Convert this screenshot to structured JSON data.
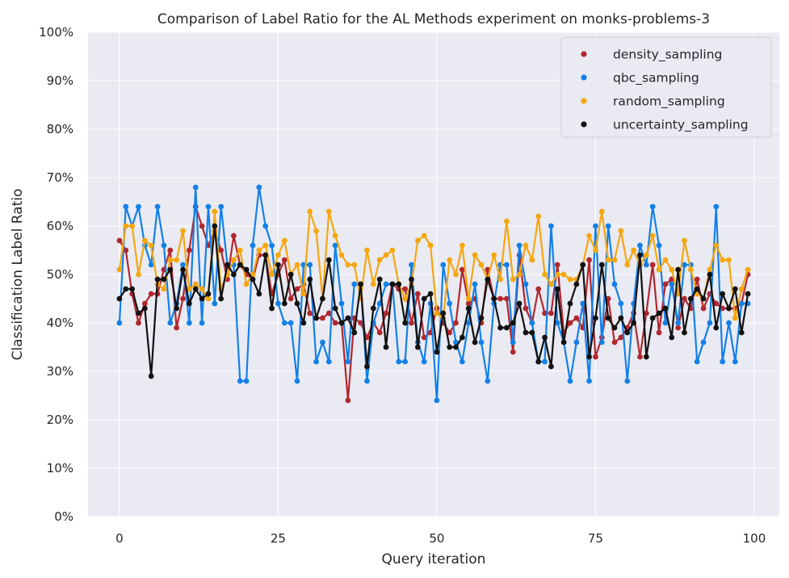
{
  "chart_data": {
    "type": "line",
    "title": "Comparison of Label Ratio for the AL Methods experiment on monks-problems-3",
    "xlabel": "Query iteration",
    "ylabel": "Classification Label Ratio",
    "xlim": [
      -4.95,
      103.95
    ],
    "ylim": [
      0,
      1
    ],
    "xticks": [
      0,
      25,
      50,
      75,
      100
    ],
    "xtick_labels": [
      "0",
      "25",
      "50",
      "75",
      "100"
    ],
    "yticks": [
      0,
      0.1,
      0.2,
      0.3,
      0.4,
      0.5,
      0.6,
      0.7,
      0.8,
      0.9,
      1.0
    ],
    "ytick_labels": [
      "0%",
      "10%",
      "20%",
      "30%",
      "40%",
      "50%",
      "60%",
      "70%",
      "80%",
      "90%",
      "100%"
    ],
    "grid": true,
    "legend_position": "top-right",
    "background": "#eaeaf2",
    "x": [
      0,
      1,
      2,
      3,
      4,
      5,
      6,
      7,
      8,
      9,
      10,
      11,
      12,
      13,
      14,
      15,
      16,
      17,
      18,
      19,
      20,
      21,
      22,
      23,
      24,
      25,
      26,
      27,
      28,
      29,
      30,
      31,
      32,
      33,
      34,
      35,
      36,
      37,
      38,
      39,
      40,
      41,
      42,
      43,
      44,
      45,
      46,
      47,
      48,
      49,
      50,
      51,
      52,
      53,
      54,
      55,
      56,
      57,
      58,
      59,
      60,
      61,
      62,
      63,
      64,
      65,
      66,
      67,
      68,
      69,
      70,
      71,
      72,
      73,
      74,
      75,
      76,
      77,
      78,
      79,
      80,
      81,
      82,
      83,
      84,
      85,
      86,
      87,
      88,
      89,
      90,
      91,
      92,
      93,
      94,
      95,
      96,
      97,
      98,
      99
    ],
    "series": [
      {
        "name": "density_sampling",
        "color": "#b2272e",
        "values": [
          0.57,
          0.55,
          0.46,
          0.4,
          0.44,
          0.46,
          0.46,
          0.51,
          0.55,
          0.39,
          0.45,
          0.55,
          0.64,
          0.6,
          0.56,
          0.59,
          0.55,
          0.49,
          0.58,
          0.52,
          0.5,
          0.49,
          0.54,
          0.54,
          0.46,
          0.5,
          0.53,
          0.45,
          0.47,
          0.48,
          0.42,
          0.41,
          0.41,
          0.42,
          0.4,
          0.4,
          0.24,
          0.41,
          0.4,
          0.37,
          0.4,
          0.38,
          0.42,
          0.48,
          0.47,
          0.47,
          0.4,
          0.46,
          0.37,
          0.38,
          0.43,
          0.4,
          0.38,
          0.4,
          0.51,
          0.44,
          0.45,
          0.4,
          0.51,
          0.45,
          0.45,
          0.45,
          0.34,
          0.54,
          0.43,
          0.4,
          0.47,
          0.42,
          0.42,
          0.52,
          0.38,
          0.4,
          0.41,
          0.39,
          0.53,
          0.33,
          0.37,
          0.45,
          0.36,
          0.37,
          0.39,
          0.42,
          0.33,
          0.42,
          0.52,
          0.38,
          0.48,
          0.49,
          0.39,
          0.45,
          0.43,
          0.49,
          0.43,
          0.46,
          0.44,
          0.43,
          0.43,
          0.43,
          0.44,
          0.5
        ]
      },
      {
        "name": "qbc_sampling",
        "color": "#1380e8",
        "values": [
          0.4,
          0.64,
          0.6,
          0.64,
          0.56,
          0.52,
          0.64,
          0.56,
          0.4,
          0.44,
          0.52,
          0.4,
          0.68,
          0.4,
          0.64,
          0.44,
          0.64,
          0.52,
          0.52,
          0.28,
          0.28,
          0.56,
          0.68,
          0.6,
          0.56,
          0.44,
          0.4,
          0.4,
          0.28,
          0.52,
          0.52,
          0.32,
          0.36,
          0.32,
          0.56,
          0.44,
          0.32,
          0.48,
          0.48,
          0.28,
          0.4,
          0.44,
          0.48,
          0.48,
          0.32,
          0.32,
          0.52,
          0.36,
          0.32,
          0.44,
          0.24,
          0.52,
          0.44,
          0.36,
          0.32,
          0.4,
          0.48,
          0.36,
          0.28,
          0.44,
          0.52,
          0.52,
          0.36,
          0.56,
          0.48,
          0.4,
          0.32,
          0.32,
          0.6,
          0.4,
          0.36,
          0.28,
          0.36,
          0.44,
          0.28,
          0.6,
          0.36,
          0.6,
          0.48,
          0.44,
          0.28,
          0.44,
          0.56,
          0.52,
          0.64,
          0.56,
          0.4,
          0.48,
          0.4,
          0.52,
          0.52,
          0.32,
          0.36,
          0.4,
          0.64,
          0.32,
          0.4,
          0.32,
          0.44,
          0.44
        ]
      },
      {
        "name": "random_sampling",
        "color": "#f5a70f",
        "values": [
          0.51,
          0.6,
          0.6,
          0.5,
          0.57,
          0.56,
          0.48,
          0.47,
          0.53,
          0.53,
          0.59,
          0.47,
          0.48,
          0.47,
          0.45,
          0.63,
          0.47,
          0.5,
          0.53,
          0.55,
          0.48,
          0.5,
          0.55,
          0.56,
          0.5,
          0.54,
          0.57,
          0.5,
          0.52,
          0.46,
          0.63,
          0.59,
          0.45,
          0.63,
          0.58,
          0.54,
          0.52,
          0.52,
          0.45,
          0.55,
          0.48,
          0.53,
          0.54,
          0.55,
          0.48,
          0.45,
          0.48,
          0.57,
          0.58,
          0.56,
          0.42,
          0.41,
          0.53,
          0.5,
          0.56,
          0.45,
          0.54,
          0.52,
          0.49,
          0.54,
          0.49,
          0.61,
          0.49,
          0.5,
          0.56,
          0.53,
          0.62,
          0.5,
          0.48,
          0.5,
          0.5,
          0.49,
          0.49,
          0.52,
          0.58,
          0.55,
          0.63,
          0.53,
          0.53,
          0.59,
          0.52,
          0.55,
          0.52,
          0.54,
          0.58,
          0.51,
          0.53,
          0.51,
          0.46,
          0.57,
          0.51,
          0.46,
          0.45,
          0.51,
          0.56,
          0.53,
          0.53,
          0.41,
          0.47,
          0.51
        ]
      },
      {
        "name": "uncertainty_sampling",
        "color": "#111111",
        "values": [
          0.45,
          0.47,
          0.47,
          0.42,
          0.43,
          0.29,
          0.49,
          0.49,
          0.51,
          0.43,
          0.51,
          0.44,
          0.47,
          0.45,
          0.46,
          0.6,
          0.45,
          0.52,
          0.5,
          0.52,
          0.51,
          0.49,
          0.46,
          0.54,
          0.43,
          0.52,
          0.44,
          0.5,
          0.44,
          0.4,
          0.49,
          0.41,
          0.45,
          0.53,
          0.43,
          0.4,
          0.41,
          0.38,
          0.48,
          0.31,
          0.43,
          0.49,
          0.35,
          0.48,
          0.48,
          0.4,
          0.49,
          0.35,
          0.45,
          0.46,
          0.34,
          0.42,
          0.35,
          0.35,
          0.37,
          0.43,
          0.36,
          0.41,
          0.49,
          0.45,
          0.39,
          0.39,
          0.4,
          0.44,
          0.38,
          0.38,
          0.32,
          0.37,
          0.31,
          0.47,
          0.36,
          0.44,
          0.48,
          0.52,
          0.33,
          0.41,
          0.52,
          0.41,
          0.39,
          0.41,
          0.38,
          0.4,
          0.54,
          0.33,
          0.41,
          0.42,
          0.43,
          0.37,
          0.51,
          0.38,
          0.45,
          0.47,
          0.45,
          0.5,
          0.39,
          0.46,
          0.43,
          0.47,
          0.38,
          0.46
        ]
      }
    ]
  }
}
